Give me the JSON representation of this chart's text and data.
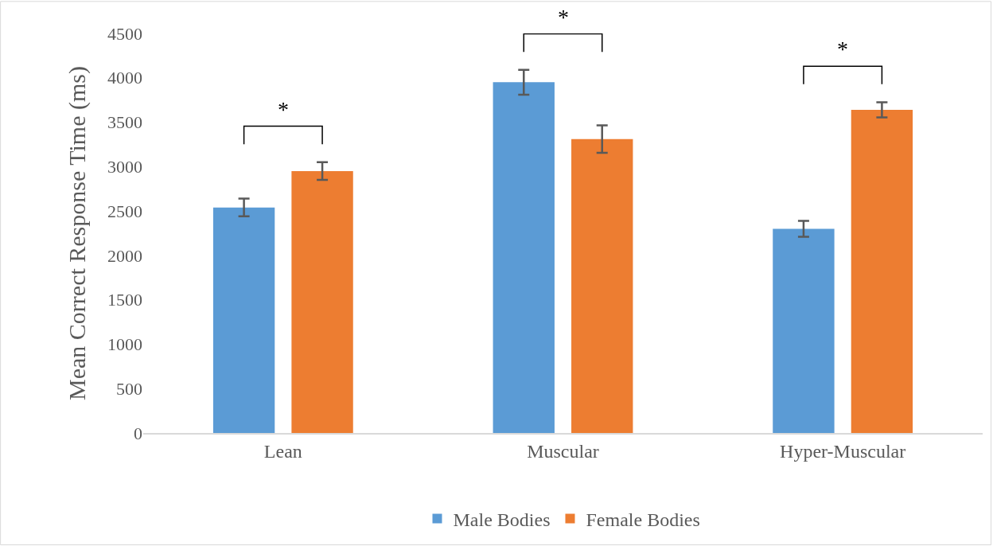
{
  "chart_data": {
    "type": "bar",
    "ylabel": "Mean Correct Response Time (ms)",
    "categories": [
      "Lean",
      "Muscular",
      "Hyper-Muscular"
    ],
    "series": [
      {
        "name": "Male Bodies",
        "color": "#5b9bd5",
        "values": [
          2540,
          3950,
          2300
        ],
        "errors": [
          100,
          140,
          90
        ]
      },
      {
        "name": "Female Bodies",
        "color": "#ed7d31",
        "values": [
          2950,
          3310,
          3640
        ],
        "errors": [
          100,
          155,
          85
        ]
      }
    ],
    "ylim": [
      0,
      4500
    ],
    "yticks": [
      0,
      500,
      1000,
      1500,
      2000,
      2500,
      3000,
      3500,
      4000,
      4500
    ],
    "annotations": [
      "*",
      "*",
      "*"
    ],
    "grid": false,
    "legend": "bottom"
  }
}
